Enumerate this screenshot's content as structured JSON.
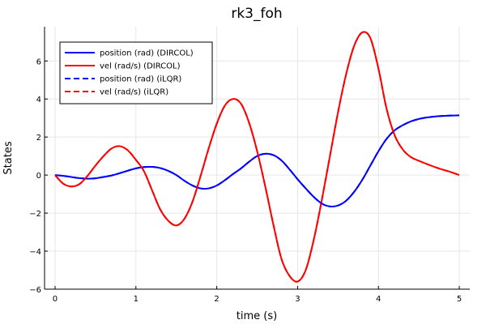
{
  "chart_data": {
    "type": "line",
    "title": "rk3_foh",
    "xlabel": "time (s)",
    "ylabel": "States",
    "xlim": [
      -0.13,
      5.13
    ],
    "ylim": [
      -6.0,
      7.8
    ],
    "xticks": [
      0,
      1,
      2,
      3,
      4,
      5
    ],
    "yticks": [
      -6,
      -4,
      -2,
      0,
      2,
      4,
      6
    ],
    "xtick_labels": [
      "0",
      "1",
      "2",
      "3",
      "4",
      "5"
    ],
    "ytick_labels": [
      "−6",
      "−4",
      "−2",
      "0",
      "2",
      "4",
      "6"
    ],
    "grid": true,
    "legend_position": "top-left",
    "x": [
      0,
      0.1,
      0.2,
      0.3,
      0.4,
      0.5,
      0.6,
      0.7,
      0.8,
      0.9,
      1.0,
      1.1,
      1.2,
      1.3,
      1.4,
      1.5,
      1.6,
      1.7,
      1.8,
      1.9,
      2.0,
      2.1,
      2.2,
      2.3,
      2.4,
      2.5,
      2.6,
      2.7,
      2.8,
      2.9,
      3.0,
      3.1,
      3.2,
      3.3,
      3.4,
      3.5,
      3.6,
      3.7,
      3.8,
      3.9,
      4.0,
      4.1,
      4.2,
      4.3,
      4.4,
      4.5,
      4.6,
      4.7,
      4.8,
      4.9,
      5.0
    ],
    "series": [
      {
        "name": "position (rad) (DIRCOL)",
        "color": "#0000ff",
        "dash": "solid",
        "values": [
          0.0,
          -0.04,
          -0.1,
          -0.16,
          -0.19,
          -0.17,
          -0.1,
          -0.02,
          0.1,
          0.23,
          0.35,
          0.42,
          0.43,
          0.37,
          0.22,
          0.0,
          -0.3,
          -0.55,
          -0.7,
          -0.7,
          -0.55,
          -0.27,
          0.05,
          0.35,
          0.7,
          1.0,
          1.12,
          1.05,
          0.77,
          0.3,
          -0.22,
          -0.7,
          -1.15,
          -1.5,
          -1.65,
          -1.6,
          -1.35,
          -0.88,
          -0.25,
          0.5,
          1.25,
          1.9,
          2.35,
          2.62,
          2.82,
          2.95,
          3.03,
          3.08,
          3.11,
          3.13,
          3.14
        ]
      },
      {
        "name": "vel (rad/s) (DIRCOL)",
        "color": "#ff0000",
        "dash": "solid",
        "values": [
          0.0,
          -0.45,
          -0.6,
          -0.48,
          -0.05,
          0.5,
          1.0,
          1.4,
          1.52,
          1.3,
          0.8,
          0.2,
          -0.8,
          -1.8,
          -2.4,
          -2.65,
          -2.3,
          -1.4,
          -0.05,
          1.4,
          2.7,
          3.65,
          4.0,
          3.75,
          2.75,
          1.25,
          -0.6,
          -2.6,
          -4.4,
          -5.3,
          -5.6,
          -5.0,
          -3.4,
          -1.3,
          1.0,
          3.3,
          5.3,
          6.8,
          7.5,
          7.2,
          5.6,
          3.5,
          2.1,
          1.35,
          0.95,
          0.75,
          0.58,
          0.42,
          0.28,
          0.15,
          0.0
        ]
      },
      {
        "name": "position (rad) (iLQR)",
        "color": "#0000ff",
        "dash": "dashed",
        "values": [
          0.0,
          -0.04,
          -0.1,
          -0.16,
          -0.19,
          -0.17,
          -0.1,
          -0.02,
          0.1,
          0.23,
          0.35,
          0.42,
          0.43,
          0.37,
          0.22,
          0.0,
          -0.3,
          -0.55,
          -0.7,
          -0.7,
          -0.55,
          -0.27,
          0.05,
          0.35,
          0.7,
          1.0,
          1.12,
          1.05,
          0.77,
          0.3,
          -0.22,
          -0.7,
          -1.15,
          -1.5,
          -1.65,
          -1.6,
          -1.35,
          -0.88,
          -0.25,
          0.5,
          1.25,
          1.9,
          2.35,
          2.62,
          2.82,
          2.95,
          3.03,
          3.08,
          3.11,
          3.13,
          3.14
        ]
      },
      {
        "name": "vel (rad/s) (iLQR)",
        "color": "#ff0000",
        "dash": "dashed",
        "values": [
          0.0,
          -0.45,
          -0.6,
          -0.48,
          -0.05,
          0.5,
          1.0,
          1.4,
          1.52,
          1.3,
          0.8,
          0.2,
          -0.8,
          -1.8,
          -2.4,
          -2.65,
          -2.3,
          -1.4,
          -0.05,
          1.4,
          2.7,
          3.65,
          4.0,
          3.75,
          2.75,
          1.25,
          -0.6,
          -2.6,
          -4.4,
          -5.3,
          -5.6,
          -5.0,
          -3.4,
          -1.3,
          1.0,
          3.3,
          5.3,
          6.8,
          7.5,
          7.2,
          5.6,
          3.5,
          2.1,
          1.35,
          0.95,
          0.75,
          0.58,
          0.42,
          0.28,
          0.15,
          0.0
        ]
      }
    ]
  }
}
